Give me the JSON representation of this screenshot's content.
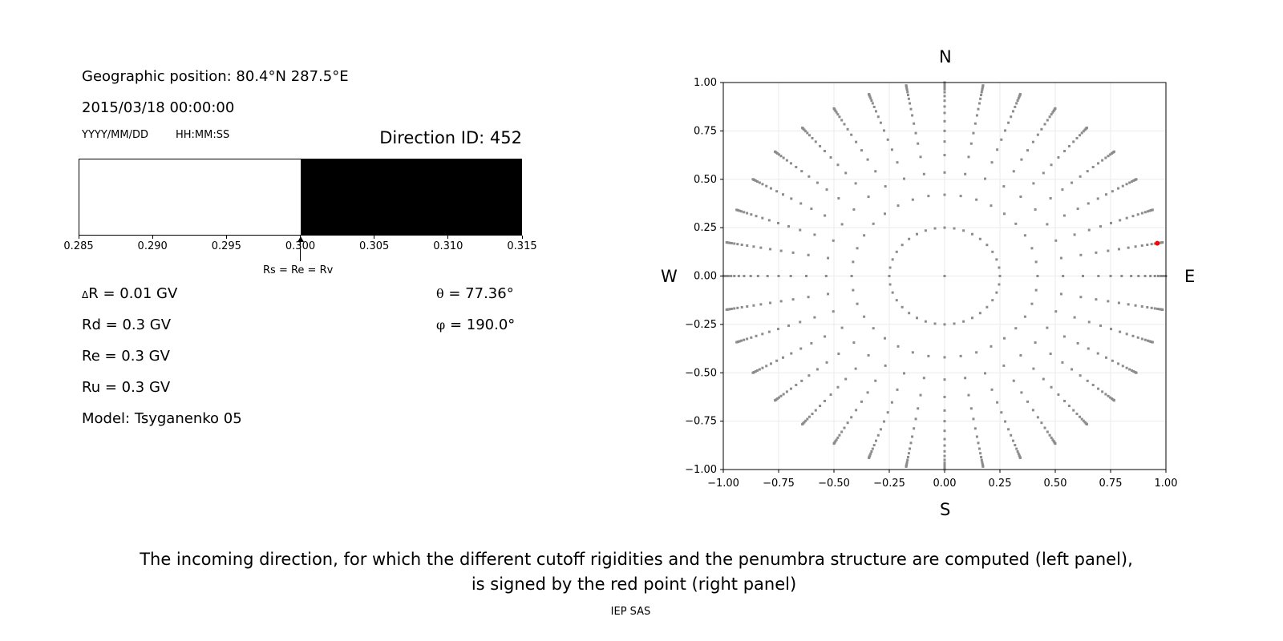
{
  "left_panel": {
    "geo_position": "Geographic position: 80.4°N 287.5°E",
    "datetime": "2015/03/18 00:00:00",
    "date_format": "YYYY/MM/DD",
    "time_format": "HH:MM:SS",
    "direction_id": "Direction ID: 452",
    "rigidity_bar": {
      "xlim": [
        0.285,
        0.315
      ],
      "ticks": [
        "0.285",
        "0.290",
        "0.295",
        "0.300",
        "0.305",
        "0.310",
        "0.315"
      ],
      "allowed_from": 0.3,
      "allowed_color": "#000000",
      "forbidden_color": "#ffffff",
      "marker_value": 0.3,
      "marker_label": "Rs = Re = Rv"
    },
    "delta_r": "R = 0.01 GV",
    "delta_symbol": "Δ",
    "rd": "Rd = 0.3 GV",
    "re": "Re = 0.3 GV",
    "ru": "Ru = 0.3 GV",
    "model": "Model: Tsyganenko 05",
    "theta": "= 77.36°",
    "theta_symbol": "θ",
    "phi": "= 190.0°",
    "phi_symbol": "φ"
  },
  "chart_data": {
    "type": "scatter",
    "xlim": [
      -1.0,
      1.0
    ],
    "ylim": [
      -1.0,
      1.0
    ],
    "grid": true,
    "xticks": [
      "−1.00",
      "−0.75",
      "−0.50",
      "−0.25",
      "0.00",
      "0.25",
      "0.50",
      "0.75",
      "1.00"
    ],
    "yticks": [
      "−1.00",
      "−0.75",
      "−0.50",
      "−0.25",
      "0.00",
      "0.25",
      "0.50",
      "0.75",
      "1.00"
    ],
    "compass": {
      "north": "N",
      "south": "S",
      "west": "W",
      "east": "E"
    },
    "directions_grid": {
      "azimuth_step_deg": 10,
      "radii": [
        0.25,
        0.42,
        0.535,
        0.625,
        0.695,
        0.75,
        0.8,
        0.843,
        0.876,
        0.906,
        0.93,
        0.95,
        0.965,
        0.977,
        0.986,
        0.993,
        0.998,
        1.0
      ],
      "center_point": true,
      "color": "#8c8c8c"
    },
    "selected_point": {
      "x": 0.961,
      "y": 0.169,
      "color": "#ff0000"
    }
  },
  "caption": {
    "line1": "The incoming direction, for which the different cutoff rigidities and the penumbra structure are computed (left panel),",
    "line2": "is signed by the red point (right panel)",
    "credit": "IEP SAS"
  }
}
